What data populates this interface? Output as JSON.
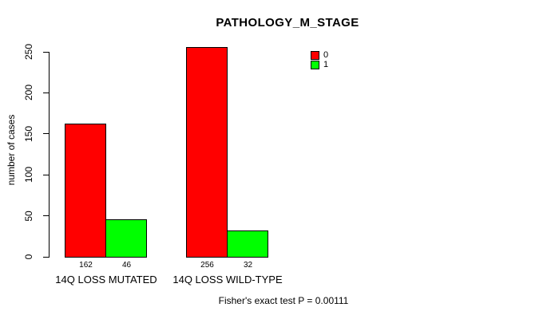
{
  "chart_data": {
    "type": "bar",
    "title": "PATHOLOGY_M_STAGE",
    "xlabel": "",
    "ylabel": "number of cases",
    "categories": [
      "14Q LOSS MUTATED",
      "14Q LOSS WILD-TYPE"
    ],
    "series": [
      {
        "name": "0",
        "color": "#ff0000",
        "values": [
          162,
          256
        ]
      },
      {
        "name": "1",
        "color": "#00ff00",
        "values": [
          46,
          32
        ]
      }
    ],
    "bar_value_labels": [
      [
        162,
        46
      ],
      [
        256,
        32
      ]
    ],
    "ylim": [
      0,
      250
    ],
    "yticks": [
      0,
      50,
      100,
      150,
      200,
      250
    ],
    "grid": false,
    "legend": {
      "position": "top-right-inside",
      "entries": [
        {
          "label": "0",
          "color": "#ff0000"
        },
        {
          "label": "1",
          "color": "#00ff00"
        }
      ]
    },
    "annotation": "Fisher's exact test P = 0.00111",
    "colors": {
      "background": "#ffffff",
      "bar_border": "#000000",
      "text": "#000000"
    }
  }
}
